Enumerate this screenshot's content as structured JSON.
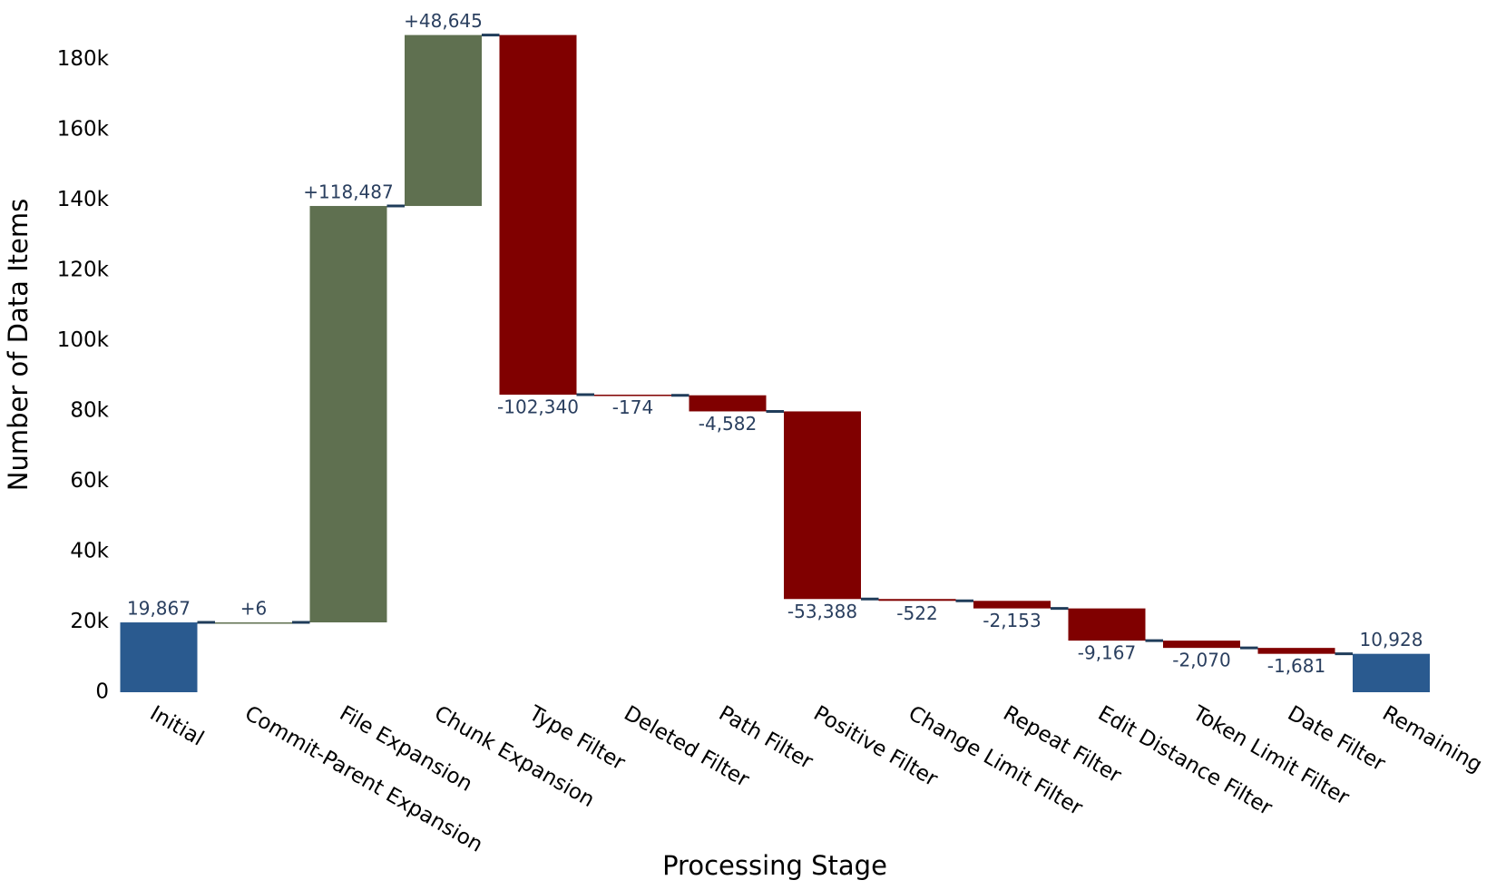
{
  "chart_data": {
    "type": "waterfall",
    "x_label": "Processing Stage",
    "y_label": "Number of Data Items",
    "categories": [
      "Initial",
      "Commit-Parent Expansion",
      "File Expansion",
      "Chunk Expansion",
      "Type Filter",
      "Deleted Filter",
      "Path Filter",
      "Positive Filter",
      "Change Limit Filter",
      "Repeat Filter",
      "Edit Distance Filter",
      "Token Limit Filter",
      "Date Filter",
      "Remaining"
    ],
    "measures": [
      "absolute",
      "relative",
      "relative",
      "relative",
      "relative",
      "relative",
      "relative",
      "relative",
      "relative",
      "relative",
      "relative",
      "relative",
      "relative",
      "total"
    ],
    "values": [
      19867,
      6,
      118487,
      48645,
      -102340,
      -174,
      -4582,
      -53388,
      -522,
      -2153,
      -9167,
      -2070,
      -1681,
      10928
    ],
    "value_labels": [
      "19,867",
      "+6",
      "+118,487",
      "+48,645",
      "-102,340",
      "-174",
      "-4,582",
      "-53,388",
      "-522",
      "-2,153",
      "-9,167",
      "-2,070",
      "-1,681",
      "10,928"
    ],
    "colors": {
      "increasing": "#5f7050",
      "decreasing": "#800000",
      "total": "#2a5a8f",
      "connector": "#1f3c5a"
    },
    "ylim": [
      0,
      190000
    ],
    "yticks": [
      0,
      {
        "value": 20000,
        "label": "20k"
      },
      {
        "value": 40000,
        "label": "40k"
      },
      {
        "value": 60000,
        "label": "60k"
      },
      {
        "value": 80000,
        "label": "80k"
      },
      {
        "value": 100000,
        "label": "100k"
      },
      {
        "value": 120000,
        "label": "120k"
      },
      {
        "value": 140000,
        "label": "140k"
      },
      {
        "value": 160000,
        "label": "160k"
      },
      {
        "value": 180000,
        "label": "180k"
      }
    ],
    "grid": false
  }
}
